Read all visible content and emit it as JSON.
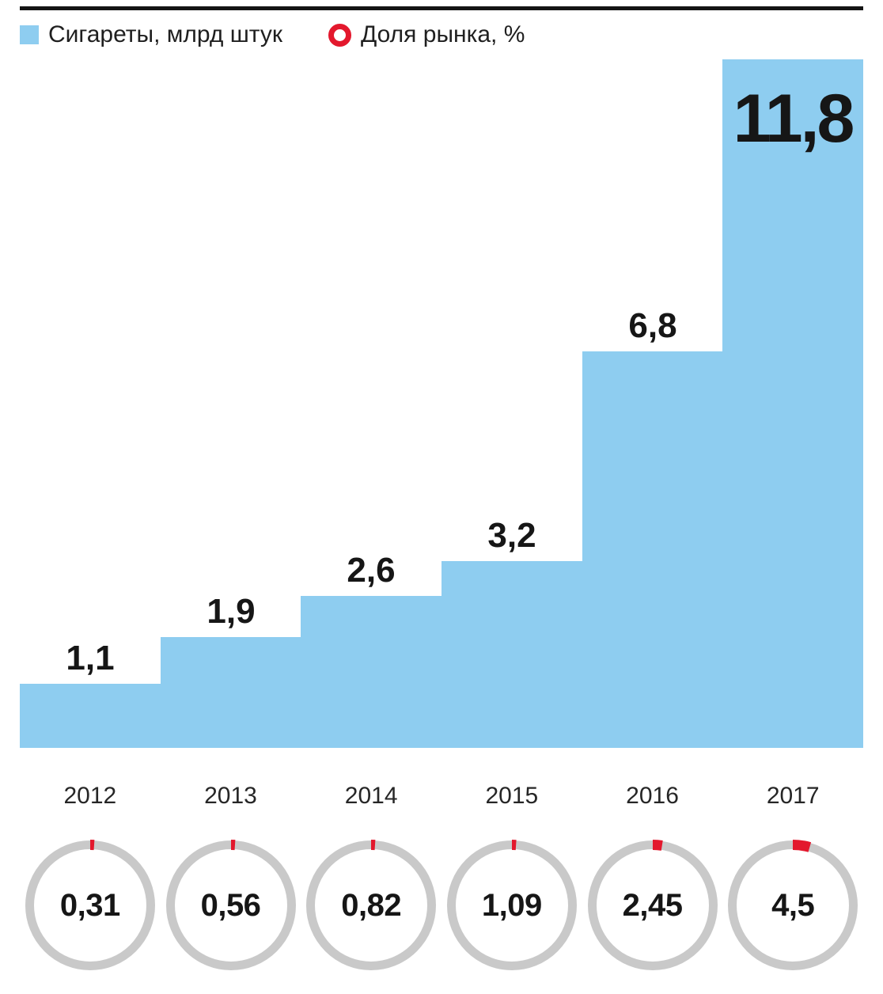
{
  "legend": {
    "bars_label": "Сигареты, млрд штук",
    "share_label": "Доля рынка, %"
  },
  "colors": {
    "bar_blue": "#8ecdf0",
    "share_red": "#e3182d",
    "ring_gray": "#c9c9c9",
    "rule_black": "#141414",
    "text_dark": "#161616"
  },
  "chart_data": {
    "type": "bar",
    "title": "",
    "categories": [
      "2012",
      "2013",
      "2014",
      "2015",
      "2016",
      "2017"
    ],
    "series": [
      {
        "name": "Сигареты, млрд штук",
        "values": [
          1.1,
          1.9,
          2.6,
          3.2,
          6.8,
          11.8
        ],
        "labels": [
          "1,1",
          "1,9",
          "2,6",
          "3,2",
          "6,8",
          "11,8"
        ]
      },
      {
        "name": "Доля рынка, %",
        "values": [
          0.31,
          0.56,
          0.82,
          1.09,
          2.45,
          4.5
        ],
        "labels": [
          "0,31",
          "0,56",
          "0,82",
          "1,09",
          "2,45",
          "4,5"
        ]
      }
    ],
    "ylim": [
      0,
      11.8
    ],
    "grid": false,
    "legend_position": "top",
    "notes": "joined step bars; market share shown as red arc on gray ring gauges, arc starts at 12 o'clock clockwise, scale 100% = full circle"
  }
}
